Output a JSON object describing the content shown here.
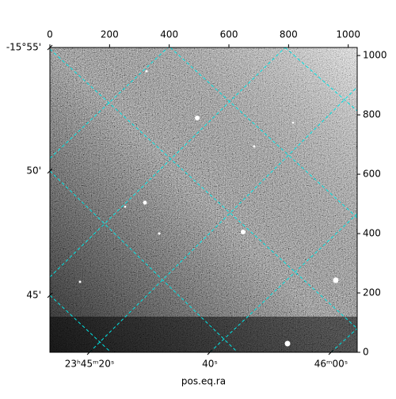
{
  "chart_data": {
    "type": "image",
    "xlabel": "pos.eq.ra",
    "xlim": [
      0,
      1030
    ],
    "ylim": [
      0,
      1027
    ],
    "xticks": [
      0,
      200,
      400,
      600,
      800,
      1000
    ],
    "yticks": [
      0,
      200,
      400,
      600,
      800,
      1000
    ],
    "ra_labels": [
      "23ʰ45ᵐ20ˢ",
      "40ˢ",
      "46ᵐ00ˢ"
    ],
    "dec_labels": [
      "-15°55'",
      "50'",
      "45'"
    ],
    "grid_color": "#00e5e5"
  }
}
